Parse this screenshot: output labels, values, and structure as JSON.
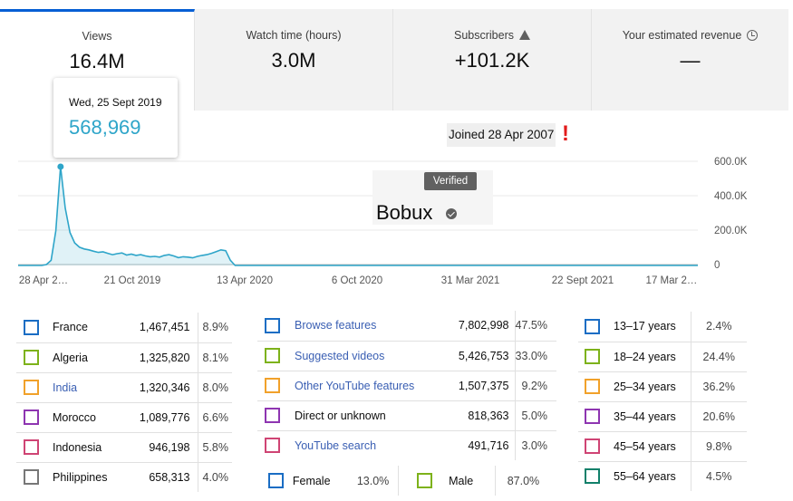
{
  "metrics": [
    {
      "label": "Views",
      "value": "16.4M"
    },
    {
      "label": "Watch time (hours)",
      "value": "3.0M"
    },
    {
      "label": "Subscribers",
      "value": "+101.2K",
      "icon": "warning-icon"
    },
    {
      "label": "Your estimated revenue",
      "value": "—",
      "icon": "clock-icon"
    }
  ],
  "tooltip": {
    "date": "Wed, 25 Sept 2019",
    "value": "568,969"
  },
  "joined": {
    "text": "Joined 28 Apr 2007",
    "mark": "!"
  },
  "overlay": {
    "badge": "Verified",
    "name": "Bobux"
  },
  "chart_data": {
    "type": "area",
    "x_ticks": [
      "28 Apr 2…",
      "21 Oct 2019",
      "13 Apr 2020",
      "6 Oct 2020",
      "31 Mar 2021",
      "22 Sept 2021",
      "17 Mar 2…"
    ],
    "y_ticks": [
      "600.0K",
      "400.0K",
      "200.0K",
      "0"
    ],
    "ylim": [
      0,
      600000
    ],
    "color": "#2ea5c9",
    "series": [
      {
        "values": [
          0,
          0,
          0,
          0,
          0,
          0,
          5000,
          30000,
          200000,
          568969,
          330000,
          190000,
          130000,
          105000,
          95000,
          90000,
          82000,
          75000,
          78000,
          70000,
          62000,
          68000,
          72000,
          60000,
          65000,
          58000,
          62000,
          55000,
          50000,
          52000,
          48000,
          58000,
          62000,
          55000,
          45000,
          50000,
          48000,
          44000,
          52000,
          58000,
          62000,
          70000,
          80000,
          90000,
          85000,
          30000,
          0,
          0,
          0,
          0
        ]
      }
    ]
  },
  "countries": [
    {
      "name": "France",
      "count": "1,467,451",
      "pct": "8.9%",
      "color": "#1a6dc4",
      "link": false
    },
    {
      "name": "Algeria",
      "count": "1,325,820",
      "pct": "8.1%",
      "color": "#7db21a",
      "link": false
    },
    {
      "name": "India",
      "count": "1,320,346",
      "pct": "8.0%",
      "color": "#f1a12a",
      "link": true
    },
    {
      "name": "Morocco",
      "count": "1,089,776",
      "pct": "6.6%",
      "color": "#8e35b1",
      "link": false
    },
    {
      "name": "Indonesia",
      "count": "946,198",
      "pct": "5.8%",
      "color": "#cf4474",
      "link": false
    },
    {
      "name": "Philippines",
      "count": "658,313",
      "pct": "4.0%",
      "color": "#777777",
      "link": false
    }
  ],
  "sources": [
    {
      "name": "Browse features",
      "count": "7,802,998",
      "pct": "47.5%",
      "color": "#1a6dc4",
      "link": true
    },
    {
      "name": "Suggested videos",
      "count": "5,426,753",
      "pct": "33.0%",
      "color": "#7db21a",
      "link": true
    },
    {
      "name": "Other YouTube features",
      "count": "1,507,375",
      "pct": "9.2%",
      "color": "#f1a12a",
      "link": true
    },
    {
      "name": "Direct or unknown",
      "count": "818,363",
      "pct": "5.0%",
      "color": "#8e35b1",
      "link": false
    },
    {
      "name": "YouTube search",
      "count": "491,716",
      "pct": "3.0%",
      "color": "#cf4474",
      "link": true
    }
  ],
  "gender": [
    {
      "name": "Female",
      "pct": "13.0%",
      "color": "#1a6dc4"
    },
    {
      "name": "Male",
      "pct": "87.0%",
      "color": "#7db21a"
    }
  ],
  "ages": [
    {
      "name": "13–17 years",
      "pct": "2.4%",
      "color": "#1a6dc4"
    },
    {
      "name": "18–24 years",
      "pct": "24.4%",
      "color": "#7db21a"
    },
    {
      "name": "25–34 years",
      "pct": "36.2%",
      "color": "#f1a12a"
    },
    {
      "name": "35–44 years",
      "pct": "20.6%",
      "color": "#8e35b1"
    },
    {
      "name": "45–54 years",
      "pct": "9.8%",
      "color": "#cf4474"
    },
    {
      "name": "55–64 years",
      "pct": "4.5%",
      "color": "#11806a"
    }
  ]
}
